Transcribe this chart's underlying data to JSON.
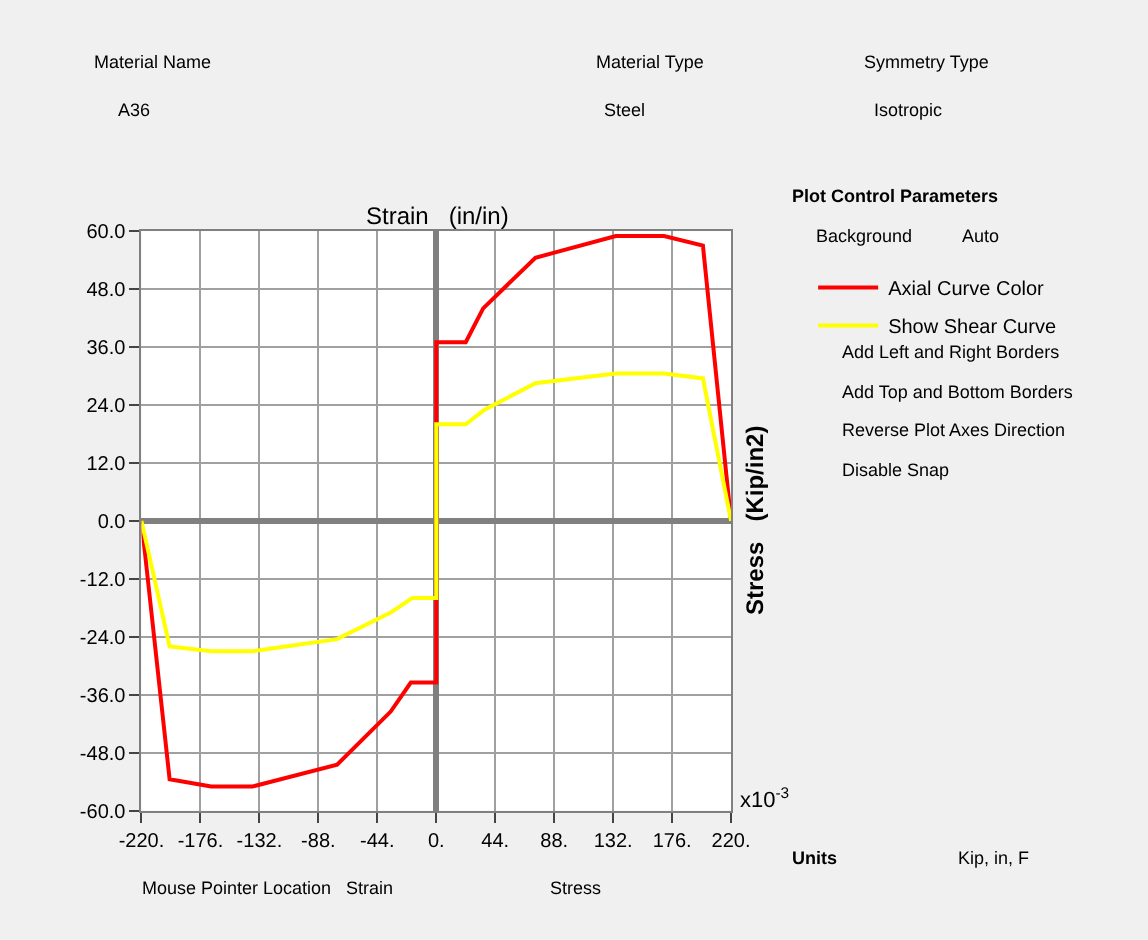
{
  "chart_data": [
    {
      "type": "line",
      "xlabel": "Strain   (in/in)",
      "ylabel": "Stress   (Kip/in2)",
      "xlim": [
        -220,
        220
      ],
      "ylim": [
        -60,
        60
      ],
      "xticks": [
        {
          "value": -220,
          "label": "-220."
        },
        {
          "value": -176,
          "label": "-176."
        },
        {
          "value": -132,
          "label": "-132."
        },
        {
          "value": -88,
          "label": "-88."
        },
        {
          "value": -44,
          "label": "-44."
        },
        {
          "value": 0,
          "label": "0."
        },
        {
          "value": 44,
          "label": "44."
        },
        {
          "value": 88,
          "label": "88."
        },
        {
          "value": 132,
          "label": "132."
        },
        {
          "value": 176,
          "label": "176."
        },
        {
          "value": 220,
          "label": "220."
        }
      ],
      "yticks": [
        {
          "value": -60,
          "label": "-60.0"
        },
        {
          "value": -48,
          "label": "-48.0"
        },
        {
          "value": -36,
          "label": "-36.0"
        },
        {
          "value": -24,
          "label": "-24.0"
        },
        {
          "value": -12,
          "label": "-12.0"
        },
        {
          "value": 0,
          "label": "0.0"
        },
        {
          "value": 12,
          "label": "12.0"
        },
        {
          "value": 24,
          "label": "24.0"
        },
        {
          "value": 36,
          "label": "36.0"
        },
        {
          "value": 48,
          "label": "48.0"
        },
        {
          "value": 60,
          "label": "60.0"
        }
      ],
      "grid": true,
      "legend": "right",
      "marker": "none",
      "line_style": "solid",
      "annotations": [
        "x10$^{-3}$"
      ],
      "series": [
        {
          "name": "Axial Curve Color",
          "color": "#ff0000",
          "x": [
            -220,
            -199,
            -168,
            -137,
            -74,
            -34,
            -19,
            0,
            0,
            22,
            35,
            74,
            134,
            170,
            199,
            220
          ],
          "values": [
            0,
            -53.5,
            -55,
            -55,
            -50.5,
            -39.5,
            -33.5,
            -33.5,
            37,
            37,
            44,
            54.5,
            59,
            59,
            57,
            0
          ]
        },
        {
          "name": "Show Shear Curve",
          "color": "#ffff00",
          "x": [
            -220,
            -199,
            -168,
            -137,
            -74,
            -34,
            -18,
            0,
            0,
            22,
            36,
            74,
            134,
            170,
            199,
            220
          ],
          "values": [
            0,
            -26,
            -27,
            -27,
            -24.5,
            -19,
            -16,
            -16,
            20,
            20,
            23,
            28.5,
            30.5,
            30.5,
            29.5,
            0
          ]
        }
      ]
    },
    {
      "type": "other",
      "annotations": [
        "Material Name",
        "A36",
        "Material Type",
        "Steel",
        "Symmetry Type",
        "Isotropic",
        "Plot Control Parameters",
        "Background",
        "Auto",
        "Add Left and Right Borders",
        "Add Top and Bottom Borders",
        "Reverse Plot Axes Direction",
        "Disable Snap",
        "Units",
        "Kip, in, F",
        "Mouse Pointer Location",
        "Strain",
        "Stress"
      ]
    }
  ]
}
